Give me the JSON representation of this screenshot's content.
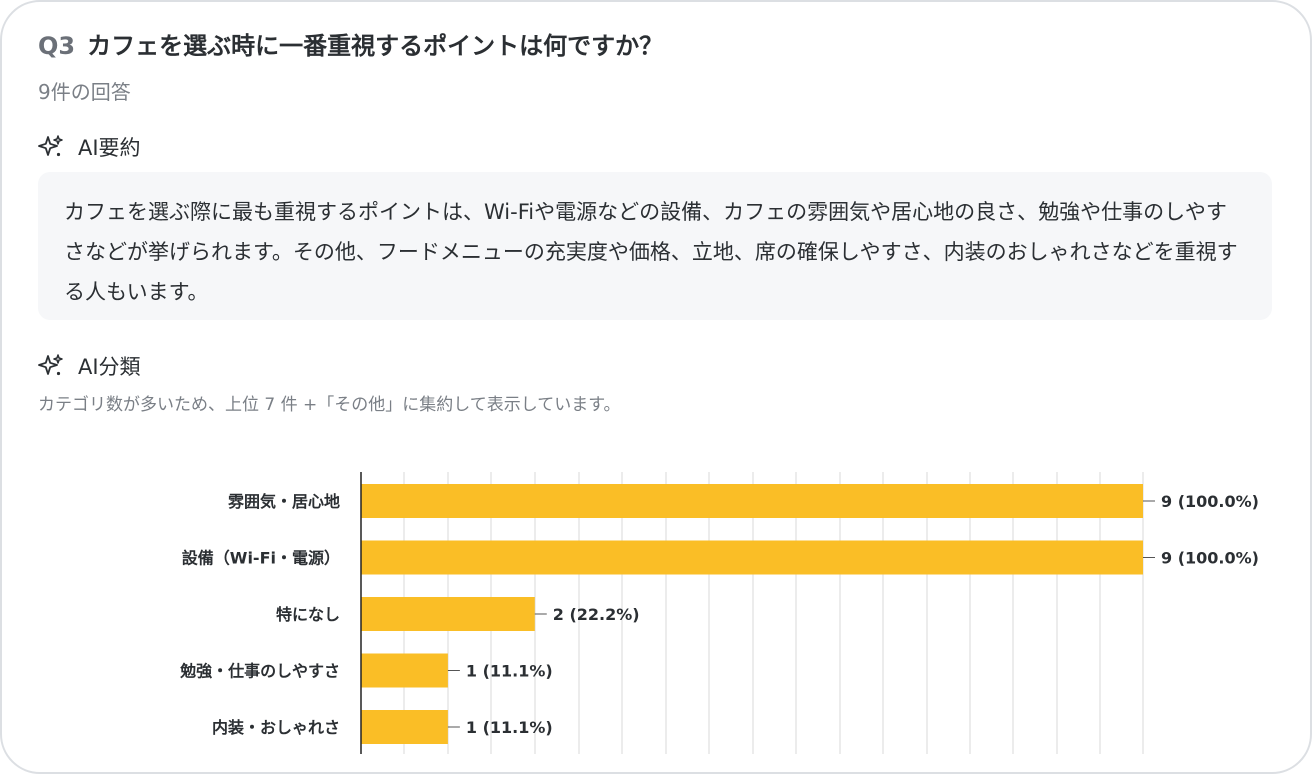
{
  "question": {
    "number": "Q3",
    "title": "カフェを選ぶ時に一番重視するポイントは何ですか？",
    "response_count": "9件の回答"
  },
  "summary": {
    "heading": "AI要約",
    "icon": "sparkle-icon",
    "text": "カフェを選ぶ際に最も重視するポイントは、Wi-Fiや電源などの設備、カフェの雰囲気や居心地の良さ、勉強や仕事のしやすさなどが挙げられます。その他、フードメニューの充実度や価格、立地、席の確保しやすさ、内装のおしゃれさなどを重視する人もいます。"
  },
  "classification": {
    "heading": "AI分類",
    "icon": "sparkle-icon",
    "note": "カテゴリ数が多いため、上位 7 件 +「その他」に集約して表示しています。"
  },
  "colors": {
    "bar": "#fabe26",
    "grid": "#d9d9d9",
    "axis": "#222222"
  },
  "chart_data": {
    "type": "bar",
    "orientation": "horizontal",
    "categories": [
      "雰囲気・居心地",
      "設備（Wi-Fi・電源）",
      "特になし",
      "勉強・仕事のしやすさ",
      "内装・おしゃれさ"
    ],
    "values": [
      9,
      9,
      2,
      1,
      1
    ],
    "value_labels": [
      "9 (100.0%)",
      "9 (100.0%)",
      "2 (22.2%)",
      "1 (11.1%)",
      "1 (11.1%)"
    ],
    "xlim": [
      0,
      9
    ],
    "grid": true,
    "title": "",
    "xlabel": "",
    "ylabel": ""
  }
}
